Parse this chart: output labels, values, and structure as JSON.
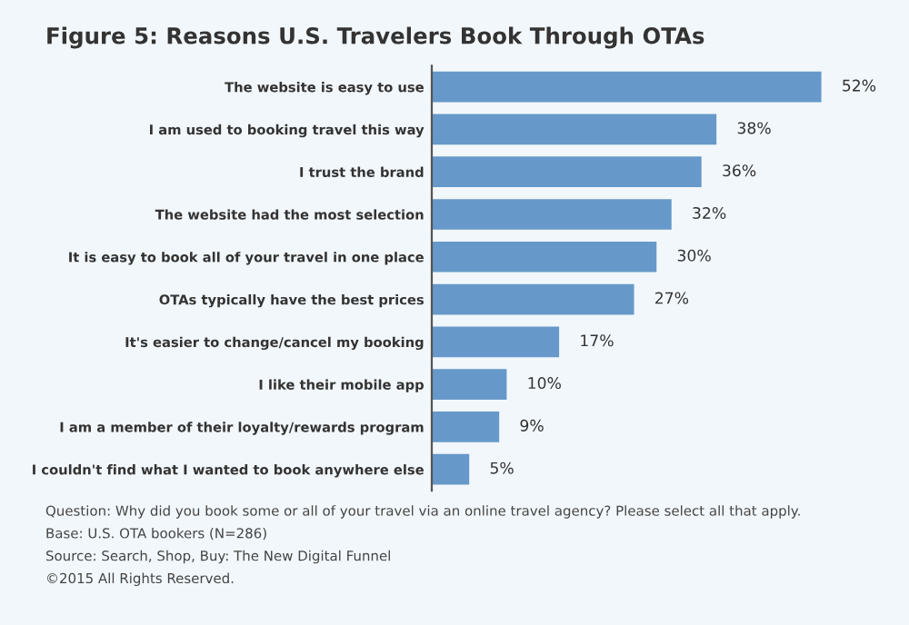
{
  "chart_data": {
    "type": "bar",
    "orientation": "horizontal",
    "title": "Figure 5: Reasons U.S. Travelers Book Through OTAs",
    "categories": [
      "The website is easy to use",
      "I am used to booking travel this way",
      "I trust the brand",
      "The website had the most selection",
      "It is easy to book all of your travel in one place",
      "OTAs typically have the best prices",
      "It's easier to change/cancel my booking",
      "I like their mobile app",
      "I am a member of their loyalty/rewards program",
      "I couldn't find what I wanted to book anywhere else"
    ],
    "values": [
      52,
      38,
      36,
      32,
      30,
      27,
      17,
      10,
      9,
      5
    ],
    "value_labels": [
      "52%",
      "38%",
      "36%",
      "32%",
      "30%",
      "27%",
      "17%",
      "10%",
      "9%",
      "5%"
    ],
    "color": "#6699c9",
    "annotations": [
      "Question: Why did you book some or all of your travel via an online travel agency? Please select all that apply.",
      "Base: U.S. OTA bookers (N=286)",
      "Source: Search, Shop, Buy: The New Digital Funnel",
      "©2015 All Rights Reserved."
    ],
    "grid": false,
    "legend": false
  }
}
